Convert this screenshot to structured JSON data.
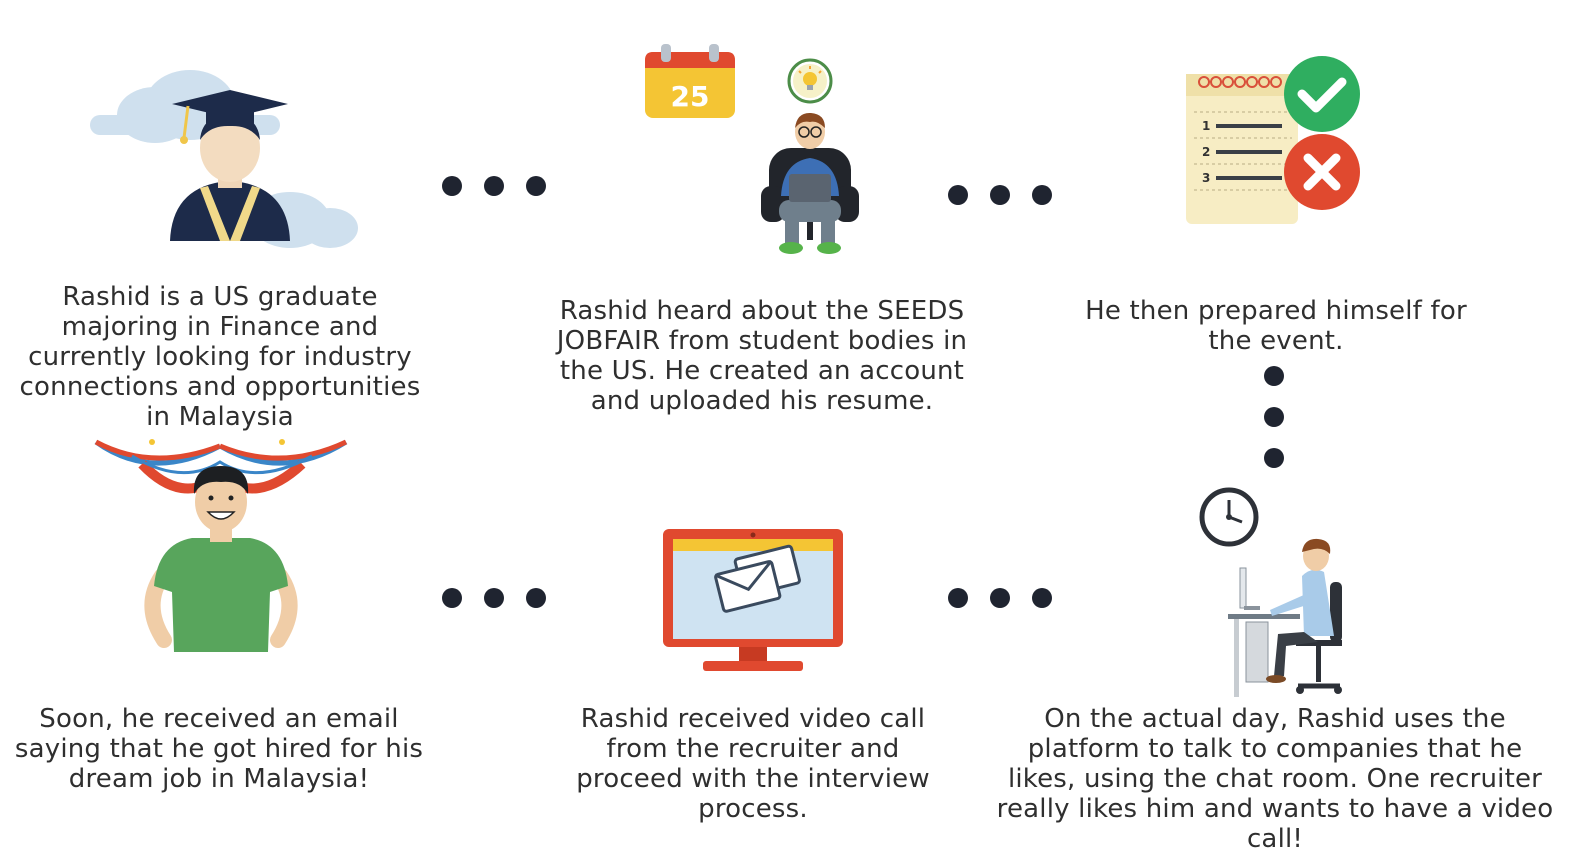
{
  "steps": [
    {
      "text": "Rashid is a US graduate majoring in Finance and currently looking for industry connections and opportunities in Malaysia",
      "icon": "graduate-icon"
    },
    {
      "text": "Rashid heard about the SEEDS JOBFAIR from student bodies in the US. He created an account and uploaded his resume.",
      "icon": "student-laptop-icon",
      "calendar_day": "25"
    },
    {
      "text": "He then prepared himself for the event.",
      "icon": "checklist-icon",
      "list_numbers": [
        "1",
        "2",
        "3"
      ]
    },
    {
      "text": "On the actual day, Rashid uses the platform to talk to companies that he likes, using the chat room. One recruiter really likes him and wants to have a video call!",
      "icon": "person-at-desk-icon"
    },
    {
      "text": "Rashid received video call from the recruiter and proceed with the interview process.",
      "icon": "monitor-email-icon"
    },
    {
      "text": "Soon, he received an email saying that he got hired for his dream job in Malaysia!",
      "icon": "happy-man-icon"
    }
  ],
  "colors": {
    "dot": "#1f2430",
    "navy": "#1d2b4a",
    "cloud": "#cfe0ee",
    "yellow": "#f4c534",
    "red": "#e0492f",
    "green": "#2fae60",
    "shirt_green": "#58a55c",
    "shirt_blue": "#3d6fb5",
    "paper": "#f7edc4"
  }
}
